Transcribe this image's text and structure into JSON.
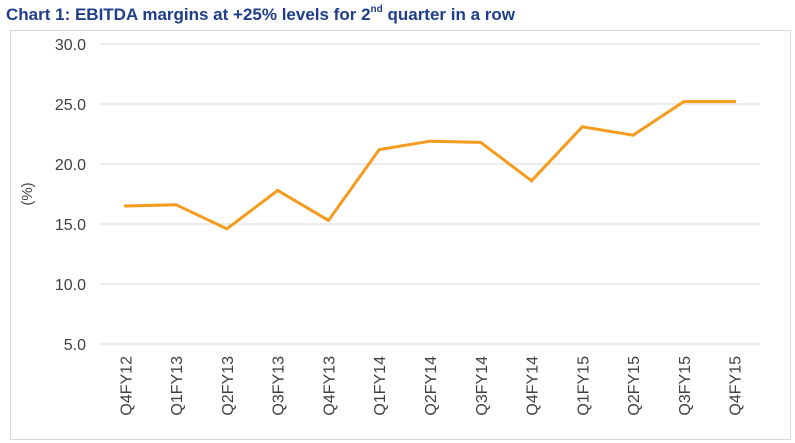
{
  "title": {
    "prefix": "Chart 1: EBITDA margins at +25% levels for 2",
    "superscript": "nd",
    "suffix": " quarter in a row"
  },
  "chart_data": {
    "type": "line",
    "categories": [
      "Q4FY12",
      "Q1FY13",
      "Q2FY13",
      "Q3FY13",
      "Q4FY13",
      "Q1FY14",
      "Q2FY14",
      "Q3FY14",
      "Q4FY14",
      "Q1FY15",
      "Q2FY15",
      "Q3FY15",
      "Q4FY15"
    ],
    "series": [
      {
        "values": [
          16.5,
          16.6,
          14.6,
          17.8,
          15.3,
          21.2,
          21.9,
          21.8,
          18.6,
          23.1,
          22.4,
          25.2,
          25.2
        ]
      }
    ],
    "ylabel": "(%)",
    "xlabel": "",
    "ylim": [
      5.0,
      30.0
    ],
    "yticks": [
      "5.0",
      "10.0",
      "15.0",
      "20.0",
      "25.0",
      "30.0"
    ],
    "grid": true,
    "line_color": "#f59b1e",
    "grid_color": "#d9d9d9"
  }
}
